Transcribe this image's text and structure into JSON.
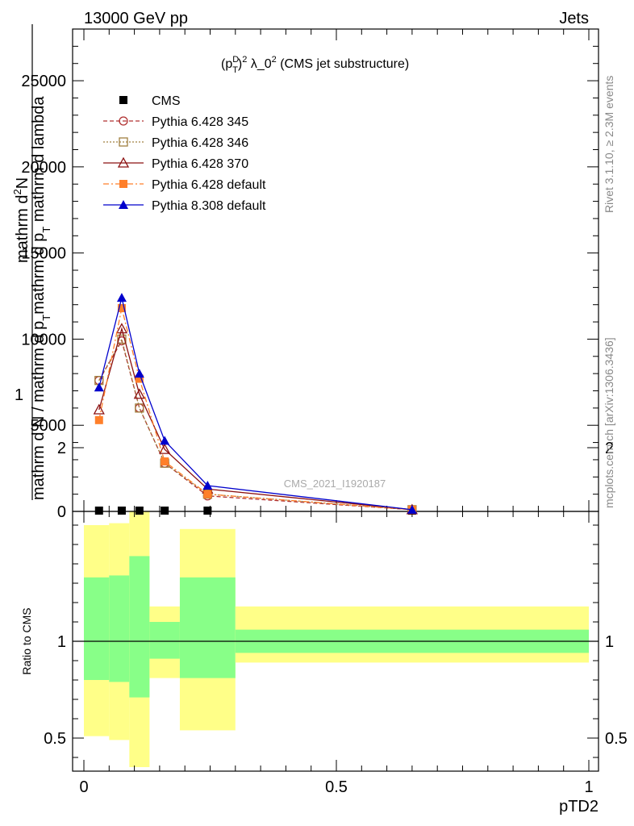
{
  "header": {
    "left": "13000 GeV pp",
    "right": "Jets"
  },
  "title_parts": {
    "p": "(p",
    "sup": "D",
    "sub": "T",
    "sq": ")",
    "two": "2",
    "rest": " λ_0",
    "two2": "2",
    "tail": " (CMS jet substructure)"
  },
  "side_text": {
    "rivet": "Rivet 3.1.10, ≥ 2.3M events",
    "mcplots": "mcplots.cern.ch [arXiv:1306.3436]"
  },
  "watermark": "CMS_2021_I1920187",
  "ylabel_main": {
    "num_top": "mathrm d",
    "num_top_sup": "2",
    "num_top_tail": "N",
    "den_top": "mathrm d p",
    "den_top_sub": "T",
    "den_top_tail": " mathrm d lambda",
    "one": "1",
    "den_bottom": "mathrm d N / mathrm d p",
    "den_bottom_sub": "T"
  },
  "ylabel_ratio": "Ratio to CMS",
  "xlabel": "pTD2",
  "legend": [
    {
      "label": "CMS",
      "marker": "square-filled",
      "color": "#000000",
      "line": "none"
    },
    {
      "label": "Pythia 6.428 345",
      "marker": "circle-open",
      "color": "#b03030",
      "line": "dashed"
    },
    {
      "label": "Pythia 6.428 346",
      "marker": "square-open",
      "color": "#a08040",
      "line": "dotted"
    },
    {
      "label": "Pythia 6.428 370",
      "marker": "triangle-open",
      "color": "#8b1010",
      "line": "solid"
    },
    {
      "label": "Pythia 6.428 default",
      "marker": "square-filled",
      "color": "#ff7f2a",
      "line": "dashdot"
    },
    {
      "label": "Pythia 8.308 default",
      "marker": "triangle-filled",
      "color": "#0000cc",
      "line": "solid"
    }
  ],
  "chart_data": {
    "type": "line",
    "x": [
      0.03,
      0.075,
      0.11,
      0.16,
      0.245,
      0.65
    ],
    "bin_edges": [
      0.0,
      0.05,
      0.09,
      0.13,
      0.19,
      0.3,
      1.0
    ],
    "xlim": [
      -0.02,
      1.02
    ],
    "ylim": [
      0,
      28000
    ],
    "yticks": [
      0,
      5000,
      10000,
      15000,
      20000,
      25000
    ],
    "yticklabels": [
      "0",
      "5000",
      "10000",
      "15000",
      "20000",
      "25000"
    ],
    "xticks": [
      0,
      0.5,
      1
    ],
    "xticklabels": [
      "0",
      "0.5",
      "1"
    ],
    "series": [
      {
        "name": "CMS",
        "values": [
          0,
          0,
          0,
          0,
          0,
          0
        ]
      },
      {
        "name": "Pythia 6.428 345",
        "values": [
          7600,
          9900,
          6000,
          2800,
          900,
          100
        ]
      },
      {
        "name": "Pythia 6.428 346",
        "values": [
          7600,
          10000,
          6000,
          2800,
          1000,
          100
        ]
      },
      {
        "name": "Pythia 6.428 370",
        "values": [
          5900,
          10600,
          6800,
          3600,
          1300,
          100
        ]
      },
      {
        "name": "Pythia 6.428 default",
        "values": [
          5300,
          11800,
          7700,
          2900,
          1000,
          100
        ]
      },
      {
        "name": "Pythia 8.308 default",
        "values": [
          7200,
          12400,
          8000,
          4100,
          1500,
          100
        ]
      }
    ],
    "ratio": {
      "ylim": [
        0.35,
        2.3
      ],
      "yticks": [
        0.5,
        1,
        2
      ],
      "yticklabels": [
        "0.5",
        "1",
        "2"
      ],
      "bands_outer": [
        [
          0.51,
          1.6
        ],
        [
          0.49,
          1.61
        ],
        [
          0.35,
          1.75
        ],
        [
          0.81,
          1.18
        ],
        [
          0.54,
          1.58
        ],
        [
          0.89,
          1.18
        ]
      ],
      "bands_inner": [
        [
          0.8,
          1.33
        ],
        [
          0.79,
          1.34
        ],
        [
          0.71,
          1.44
        ],
        [
          0.91,
          1.1
        ],
        [
          0.81,
          1.33
        ],
        [
          0.94,
          1.06
        ]
      ]
    }
  }
}
